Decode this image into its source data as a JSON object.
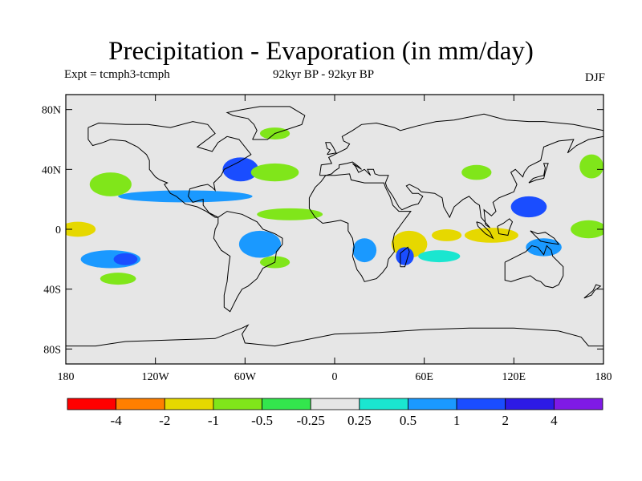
{
  "header": {
    "title": "Precipitation - Evaporation (in mm/day)",
    "experiment": "Expt = tcmph3-tcmph",
    "period": "92kyr BP - 92kyr BP",
    "season": "DJF"
  },
  "map": {
    "background_color": "#e6e6e6",
    "coastline_color": "#000000",
    "lon_range": [
      -180,
      180
    ],
    "lat_range": [
      -90,
      90
    ],
    "x_ticks": [
      "180",
      "120W",
      "60W",
      "0",
      "60E",
      "120E",
      "180"
    ],
    "y_ticks": [
      "80N",
      "40N",
      "0",
      "40S",
      "80S"
    ]
  },
  "colorbar": {
    "colors": [
      "#ff0000",
      "#ff7f00",
      "#e6d800",
      "#80e61a",
      "#33e64d",
      "#e6e6e6",
      "#1ae6d0",
      "#1a99ff",
      "#1a4dff",
      "#2d1ae6",
      "#7f1ae6"
    ],
    "labels": [
      "-4",
      "-2",
      "-1",
      "-0.5",
      "-0.25",
      "0.25",
      "0.5",
      "1",
      "2",
      "4"
    ]
  },
  "chart_data": {
    "type": "heatmap",
    "title": "Precipitation - Evaporation (in mm/day)",
    "levels": [
      -4,
      -2,
      -1,
      -0.5,
      -0.25,
      0.25,
      0.5,
      1,
      2,
      4
    ],
    "regions": [
      {
        "lon": -100,
        "lat": 22,
        "rx": 45,
        "ry": 4,
        "level": 1
      },
      {
        "lon": -172,
        "lat": 0,
        "rx": 12,
        "ry": 5,
        "level": -1
      },
      {
        "lon": -150,
        "lat": 30,
        "rx": 14,
        "ry": 8,
        "level": -0.5
      },
      {
        "lon": -150,
        "lat": -20,
        "rx": 20,
        "ry": 6,
        "level": 1
      },
      {
        "lon": -140,
        "lat": -20,
        "rx": 8,
        "ry": 4,
        "level": 2
      },
      {
        "lon": -145,
        "lat": -33,
        "rx": 12,
        "ry": 4,
        "level": -0.5
      },
      {
        "lon": -63,
        "lat": 40,
        "rx": 12,
        "ry": 8,
        "level": 2
      },
      {
        "lon": -40,
        "lat": 38,
        "rx": 16,
        "ry": 6,
        "level": -0.5
      },
      {
        "lon": -40,
        "lat": 64,
        "rx": 10,
        "ry": 4,
        "level": -0.5
      },
      {
        "lon": -30,
        "lat": 10,
        "rx": 22,
        "ry": 4,
        "level": -0.5
      },
      {
        "lon": -50,
        "lat": -10,
        "rx": 14,
        "ry": 9,
        "level": 1
      },
      {
        "lon": -40,
        "lat": -22,
        "rx": 10,
        "ry": 4,
        "level": -0.5
      },
      {
        "lon": 20,
        "lat": -14,
        "rx": 8,
        "ry": 8,
        "level": 1
      },
      {
        "lon": 50,
        "lat": -10,
        "rx": 12,
        "ry": 9,
        "level": -1
      },
      {
        "lon": 47,
        "lat": -18,
        "rx": 6,
        "ry": 6,
        "level": 2
      },
      {
        "lon": 70,
        "lat": -18,
        "rx": 14,
        "ry": 4,
        "level": 0.5
      },
      {
        "lon": 75,
        "lat": -4,
        "rx": 10,
        "ry": 4,
        "level": -1
      },
      {
        "lon": 105,
        "lat": -4,
        "rx": 18,
        "ry": 5,
        "level": -1
      },
      {
        "lon": 130,
        "lat": 15,
        "rx": 12,
        "ry": 7,
        "level": 2
      },
      {
        "lon": 140,
        "lat": -12,
        "rx": 12,
        "ry": 6,
        "level": 1
      },
      {
        "lon": 170,
        "lat": 0,
        "rx": 12,
        "ry": 6,
        "level": -0.5
      },
      {
        "lon": 172,
        "lat": 42,
        "rx": 8,
        "ry": 8,
        "level": -0.5
      },
      {
        "lon": 95,
        "lat": 38,
        "rx": 10,
        "ry": 5,
        "level": -0.5
      }
    ]
  }
}
